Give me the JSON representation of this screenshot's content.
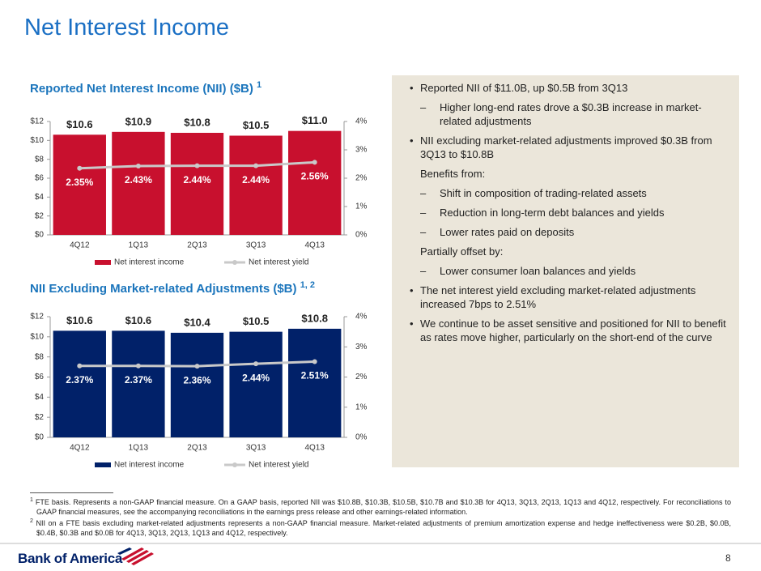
{
  "page": {
    "title": "Net Interest Income",
    "panel": [
      {
        "level": "bullet",
        "text": "Reported NII of $11.0B, up $0.5B from 3Q13"
      },
      {
        "level": "dash",
        "text": "Higher long-end rates drove a $0.3B increase in market-related adjustments"
      },
      {
        "level": "bullet",
        "text": "NII excluding market-related adjustments improved $0.3B from 3Q13 to $10.8B"
      },
      {
        "level": "plain",
        "text": "Benefits from:"
      },
      {
        "level": "dash",
        "text": "Shift in composition of trading-related assets"
      },
      {
        "level": "dash",
        "text": "Reduction in long-term debt balances and yields"
      },
      {
        "level": "dash",
        "text": "Lower rates paid on deposits"
      },
      {
        "level": "plain",
        "text": "Partially offset by:"
      },
      {
        "level": "dash",
        "text": "Lower consumer loan balances and yields"
      },
      {
        "level": "bullet",
        "text": "The net interest yield excluding market-related adjustments increased 7bps to 2.51%"
      },
      {
        "level": "bullet",
        "text": "We continue to be asset sensitive and positioned for NII to benefit as rates move higher, particularly on the short-end of the curve"
      }
    ],
    "footnotes": [
      {
        "mark": "1",
        "text": "FTE basis. Represents a non-GAAP financial measure. On a GAAP basis, reported NII was $10.8B, $10.3B, $10.5B, $10.7B and $10.3B for 4Q13, 3Q13, 2Q13, 1Q13 and 4Q12, respectively. For reconciliations to GAAP financial measures, see the accompanying reconciliations in the earnings press release and other earnings-related information."
      },
      {
        "mark": "2",
        "text": "NII on a FTE basis excluding market-related adjustments represents a non-GAAP financial measure. Market-related adjustments of premium amortization expense and hedge ineffectiveness were $0.2B, $0.0B, $0.4B, $0.3B and $0.0B for 4Q13, 3Q13, 2Q13, 1Q13 and 4Q12, respectively."
      }
    ],
    "logo": "Bank of America",
    "page_number": "8"
  },
  "chart_data": [
    {
      "type": "bar",
      "title": "Reported Net Interest Income (NII) ($B)",
      "title_note": "1",
      "categories": [
        "4Q12",
        "1Q13",
        "2Q13",
        "3Q13",
        "4Q13"
      ],
      "series": [
        {
          "name": "Net interest income",
          "color": "#c8102e",
          "values": [
            10.6,
            10.9,
            10.8,
            10.5,
            11.0
          ],
          "value_labels": [
            "$10.6",
            "$10.9",
            "$10.8",
            "$10.5",
            "$11.0"
          ]
        },
        {
          "name": "Net interest yield",
          "color": "#c9c9c9",
          "axis": "y2",
          "values": [
            2.35,
            2.43,
            2.44,
            2.44,
            2.56
          ],
          "value_labels": [
            "2.35%",
            "2.43%",
            "2.44%",
            "2.44%",
            "2.56%"
          ]
        }
      ],
      "ylim": [
        0,
        12
      ],
      "yticks": [
        {
          "value": 0,
          "label": "$0"
        },
        {
          "value": 2,
          "label": "$2"
        },
        {
          "value": 4,
          "label": "$4"
        },
        {
          "value": 6,
          "label": "$6"
        },
        {
          "value": 8,
          "label": "$8"
        },
        {
          "value": 10,
          "label": "$10"
        },
        {
          "value": 12,
          "label": "$12"
        }
      ],
      "y2lim": [
        0,
        4
      ],
      "y2ticks": [
        {
          "value": 0,
          "label": "0%"
        },
        {
          "value": 1,
          "label": "1%"
        },
        {
          "value": 2,
          "label": "2%"
        },
        {
          "value": 3,
          "label": "3%"
        },
        {
          "value": 4,
          "label": "4%"
        }
      ]
    },
    {
      "type": "bar",
      "title": "NII Excluding Market-related Adjustments ($B)",
      "title_note": "1, 2",
      "categories": [
        "4Q12",
        "1Q13",
        "2Q13",
        "3Q13",
        "4Q13"
      ],
      "series": [
        {
          "name": "Net interest income",
          "color": "#012169",
          "values": [
            10.6,
            10.6,
            10.4,
            10.5,
            10.8
          ],
          "value_labels": [
            "$10.6",
            "$10.6",
            "$10.4",
            "$10.5",
            "$10.8"
          ]
        },
        {
          "name": "Net interest yield",
          "color": "#c9c9c9",
          "axis": "y2",
          "values": [
            2.37,
            2.37,
            2.36,
            2.44,
            2.51
          ],
          "value_labels": [
            "2.37%",
            "2.37%",
            "2.36%",
            "2.44%",
            "2.51%"
          ]
        }
      ],
      "ylim": [
        0,
        12
      ],
      "yticks": [
        {
          "value": 0,
          "label": "$0"
        },
        {
          "value": 2,
          "label": "$2"
        },
        {
          "value": 4,
          "label": "$4"
        },
        {
          "value": 6,
          "label": "$6"
        },
        {
          "value": 8,
          "label": "$8"
        },
        {
          "value": 10,
          "label": "$10"
        },
        {
          "value": 12,
          "label": "$12"
        }
      ],
      "y2lim": [
        0,
        4
      ],
      "y2ticks": [
        {
          "value": 0,
          "label": "0%"
        },
        {
          "value": 1,
          "label": "1%"
        },
        {
          "value": 2,
          "label": "2%"
        },
        {
          "value": 3,
          "label": "3%"
        },
        {
          "value": 4,
          "label": "4%"
        }
      ]
    }
  ]
}
